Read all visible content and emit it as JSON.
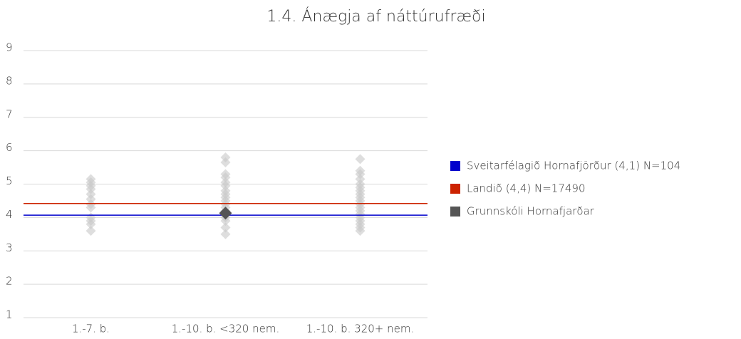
{
  "chart_data": {
    "type": "scatter",
    "title": "1.4. Ánægja af náttúrufræði",
    "categories": [
      "1.-7. b.",
      "1.-10. b. <320 nem.",
      "1.-10. b. 320+ nem."
    ],
    "points": [
      [
        5.15,
        5.05,
        4.95,
        4.85,
        4.7,
        4.55,
        4.4,
        4.3,
        4.0,
        3.9,
        3.8,
        3.6
      ],
      [
        5.8,
        5.65,
        5.3,
        5.2,
        5.05,
        4.95,
        4.8,
        4.7,
        4.6,
        4.5,
        4.4,
        4.3,
        4.2,
        4.1,
        4.0,
        3.9,
        3.7,
        3.5
      ],
      [
        5.75,
        5.4,
        5.3,
        5.15,
        5.0,
        4.9,
        4.8,
        4.7,
        4.6,
        4.5,
        4.4,
        4.3,
        4.2,
        4.1,
        4.0,
        3.9,
        3.8,
        3.7,
        3.6
      ]
    ],
    "points_color": "#c8c8c8",
    "series": [
      {
        "name": "Sveitarfélagið Hornafjörður (4,1) N=104",
        "color": "#0000cc",
        "kind": "line",
        "value": 4.07
      },
      {
        "name": "Landið (4,4) N=17490",
        "color": "#cc2200",
        "kind": "line",
        "value": 4.42
      },
      {
        "name": "Grunnskóli Hornafjarðar",
        "color": "#555555",
        "kind": "point",
        "values": [
          null,
          4.13,
          null
        ]
      }
    ],
    "ylim": [
      1,
      9
    ],
    "yticks": [
      1,
      2,
      3,
      4,
      5,
      6,
      7,
      8,
      9
    ],
    "grid": true
  }
}
